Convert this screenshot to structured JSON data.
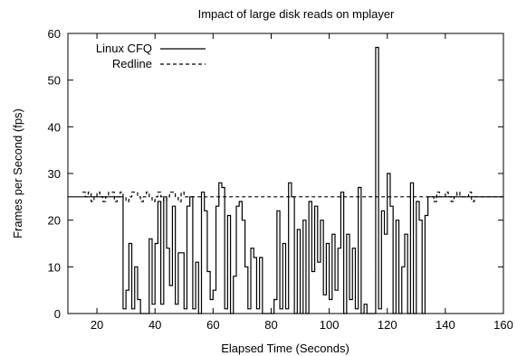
{
  "chart_data": {
    "type": "line",
    "title": "Impact of large disk reads on mplayer",
    "xlabel": "Elapsed Time (Seconds)",
    "ylabel": "Frames per Second (fps)",
    "xlim": [
      10,
      160
    ],
    "ylim": [
      0,
      60
    ],
    "xticks": [
      20,
      40,
      60,
      80,
      100,
      120,
      140,
      160
    ],
    "yticks": [
      0,
      10,
      20,
      30,
      40,
      50,
      60
    ],
    "grid": false,
    "legend_position": "top-left",
    "series": [
      {
        "name": "Linux CFQ",
        "style": "solid",
        "color": "#000000",
        "step": true,
        "x": [
          10,
          29,
          30,
          31,
          32,
          33,
          34,
          35,
          36,
          37,
          38,
          39,
          40,
          41,
          42,
          43,
          44,
          45,
          46,
          47,
          48,
          49,
          50,
          51,
          52,
          53,
          54,
          55,
          56,
          57,
          58,
          59,
          60,
          61,
          62,
          63,
          64,
          65,
          66,
          67,
          68,
          69,
          70,
          71,
          72,
          73,
          74,
          75,
          76,
          77,
          78,
          79,
          80,
          81,
          82,
          83,
          84,
          85,
          86,
          87,
          88,
          89,
          90,
          91,
          92,
          93,
          94,
          95,
          96,
          97,
          98,
          99,
          100,
          101,
          102,
          103,
          104,
          105,
          106,
          107,
          108,
          109,
          110,
          111,
          112,
          113,
          114,
          115,
          116,
          117,
          118,
          119,
          120,
          121,
          122,
          123,
          124,
          125,
          126,
          127,
          128,
          129,
          130,
          131,
          132,
          133,
          134,
          160
        ],
        "values": [
          25,
          1,
          5,
          15,
          1,
          10,
          3,
          0,
          0,
          0,
          16,
          2,
          15,
          24,
          2,
          25,
          14,
          6,
          23,
          2,
          13,
          13,
          1,
          23,
          25,
          1,
          11,
          0,
          26,
          22,
          9,
          3,
          5,
          23,
          28,
          27,
          1,
          21,
          0,
          8,
          23,
          24,
          20,
          10,
          1,
          14,
          12,
          1,
          12,
          0,
          0,
          0,
          0,
          3,
          22,
          1,
          15,
          1,
          28,
          25,
          0,
          18,
          0,
          20,
          0,
          24,
          9,
          23,
          11,
          20,
          4,
          15,
          3,
          17,
          5,
          14,
          26,
          0,
          17,
          3,
          14,
          1,
          27,
          0,
          2,
          0,
          0,
          0,
          57,
          1,
          22,
          17,
          30,
          23,
          0,
          20,
          0,
          10,
          17,
          0,
          28,
          0,
          24,
          20,
          0,
          21,
          25,
          25
        ]
      },
      {
        "name": "Redline",
        "style": "dashed",
        "color": "#000000",
        "step": true,
        "x": [
          15,
          16,
          17,
          18,
          19,
          20,
          21,
          22,
          23,
          24,
          25,
          26,
          27,
          28,
          29,
          30,
          31,
          32,
          33,
          34,
          35,
          36,
          37,
          38,
          39,
          40,
          41,
          42,
          43,
          44,
          45,
          46,
          47,
          48,
          49,
          50,
          135,
          136,
          137,
          138,
          139,
          140,
          141,
          142,
          143,
          144,
          145,
          146,
          147,
          148,
          149,
          150,
          160
        ],
        "values": [
          26,
          25,
          26,
          24,
          25,
          26,
          25,
          24,
          25,
          26,
          26,
          24,
          25,
          26,
          25,
          24,
          25,
          26,
          26,
          25,
          24,
          25,
          26,
          25,
          24,
          25,
          26,
          25,
          24,
          25,
          26,
          26,
          25,
          24,
          26,
          25,
          25,
          24,
          26,
          25,
          25,
          26,
          25,
          24,
          25,
          26,
          25,
          25,
          25,
          26,
          24,
          25,
          25
        ]
      }
    ]
  }
}
